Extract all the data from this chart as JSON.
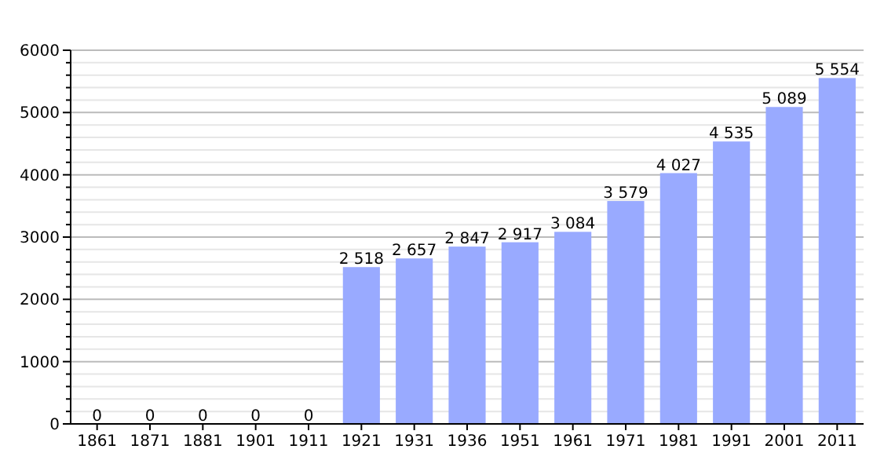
{
  "chart_data": {
    "type": "bar",
    "categories": [
      "1861",
      "1871",
      "1881",
      "1901",
      "1911",
      "1921",
      "1931",
      "1936",
      "1951",
      "1961",
      "1971",
      "1981",
      "1991",
      "2001",
      "2011"
    ],
    "values": [
      0,
      0,
      0,
      0,
      0,
      2518,
      2657,
      2847,
      2917,
      3084,
      3579,
      4027,
      4535,
      5089,
      5554
    ],
    "value_labels": [
      "0",
      "0",
      "0",
      "0",
      "0",
      "2 518",
      "2 657",
      "2 847",
      "2 917",
      "3 084",
      "3 579",
      "4 027",
      "4 535",
      "5 089",
      "5 554"
    ],
    "color": "#99aaff",
    "ylim": [
      0,
      6000
    ],
    "yticks": [
      0,
      {
        "value": 200,
        "label": null
      },
      {
        "value": 400,
        "label": null
      },
      {
        "value": 600,
        "label": null
      },
      {
        "value": 800,
        "label": null
      },
      1000,
      {
        "value": 1200,
        "label": null
      },
      {
        "value": 1400,
        "label": null
      },
      {
        "value": 1600,
        "label": null
      },
      {
        "value": 1800,
        "label": null
      },
      2000,
      {
        "value": 2200,
        "label": null
      },
      {
        "value": 2400,
        "label": null
      },
      {
        "value": 2600,
        "label": null
      },
      {
        "value": 2800,
        "label": null
      },
      3000,
      {
        "value": 3200,
        "label": null
      },
      {
        "value": 3400,
        "label": null
      },
      {
        "value": 3600,
        "label": null
      },
      {
        "value": 3800,
        "label": null
      },
      4000,
      {
        "value": 4200,
        "label": null
      },
      {
        "value": 4400,
        "label": null
      },
      {
        "value": 4600,
        "label": null
      },
      {
        "value": 4800,
        "label": null
      },
      5000,
      {
        "value": 5200,
        "label": null
      },
      {
        "value": 5400,
        "label": null
      },
      {
        "value": 5600,
        "label": null
      },
      {
        "value": 5800,
        "label": null
      },
      6000
    ],
    "grid": "y"
  }
}
